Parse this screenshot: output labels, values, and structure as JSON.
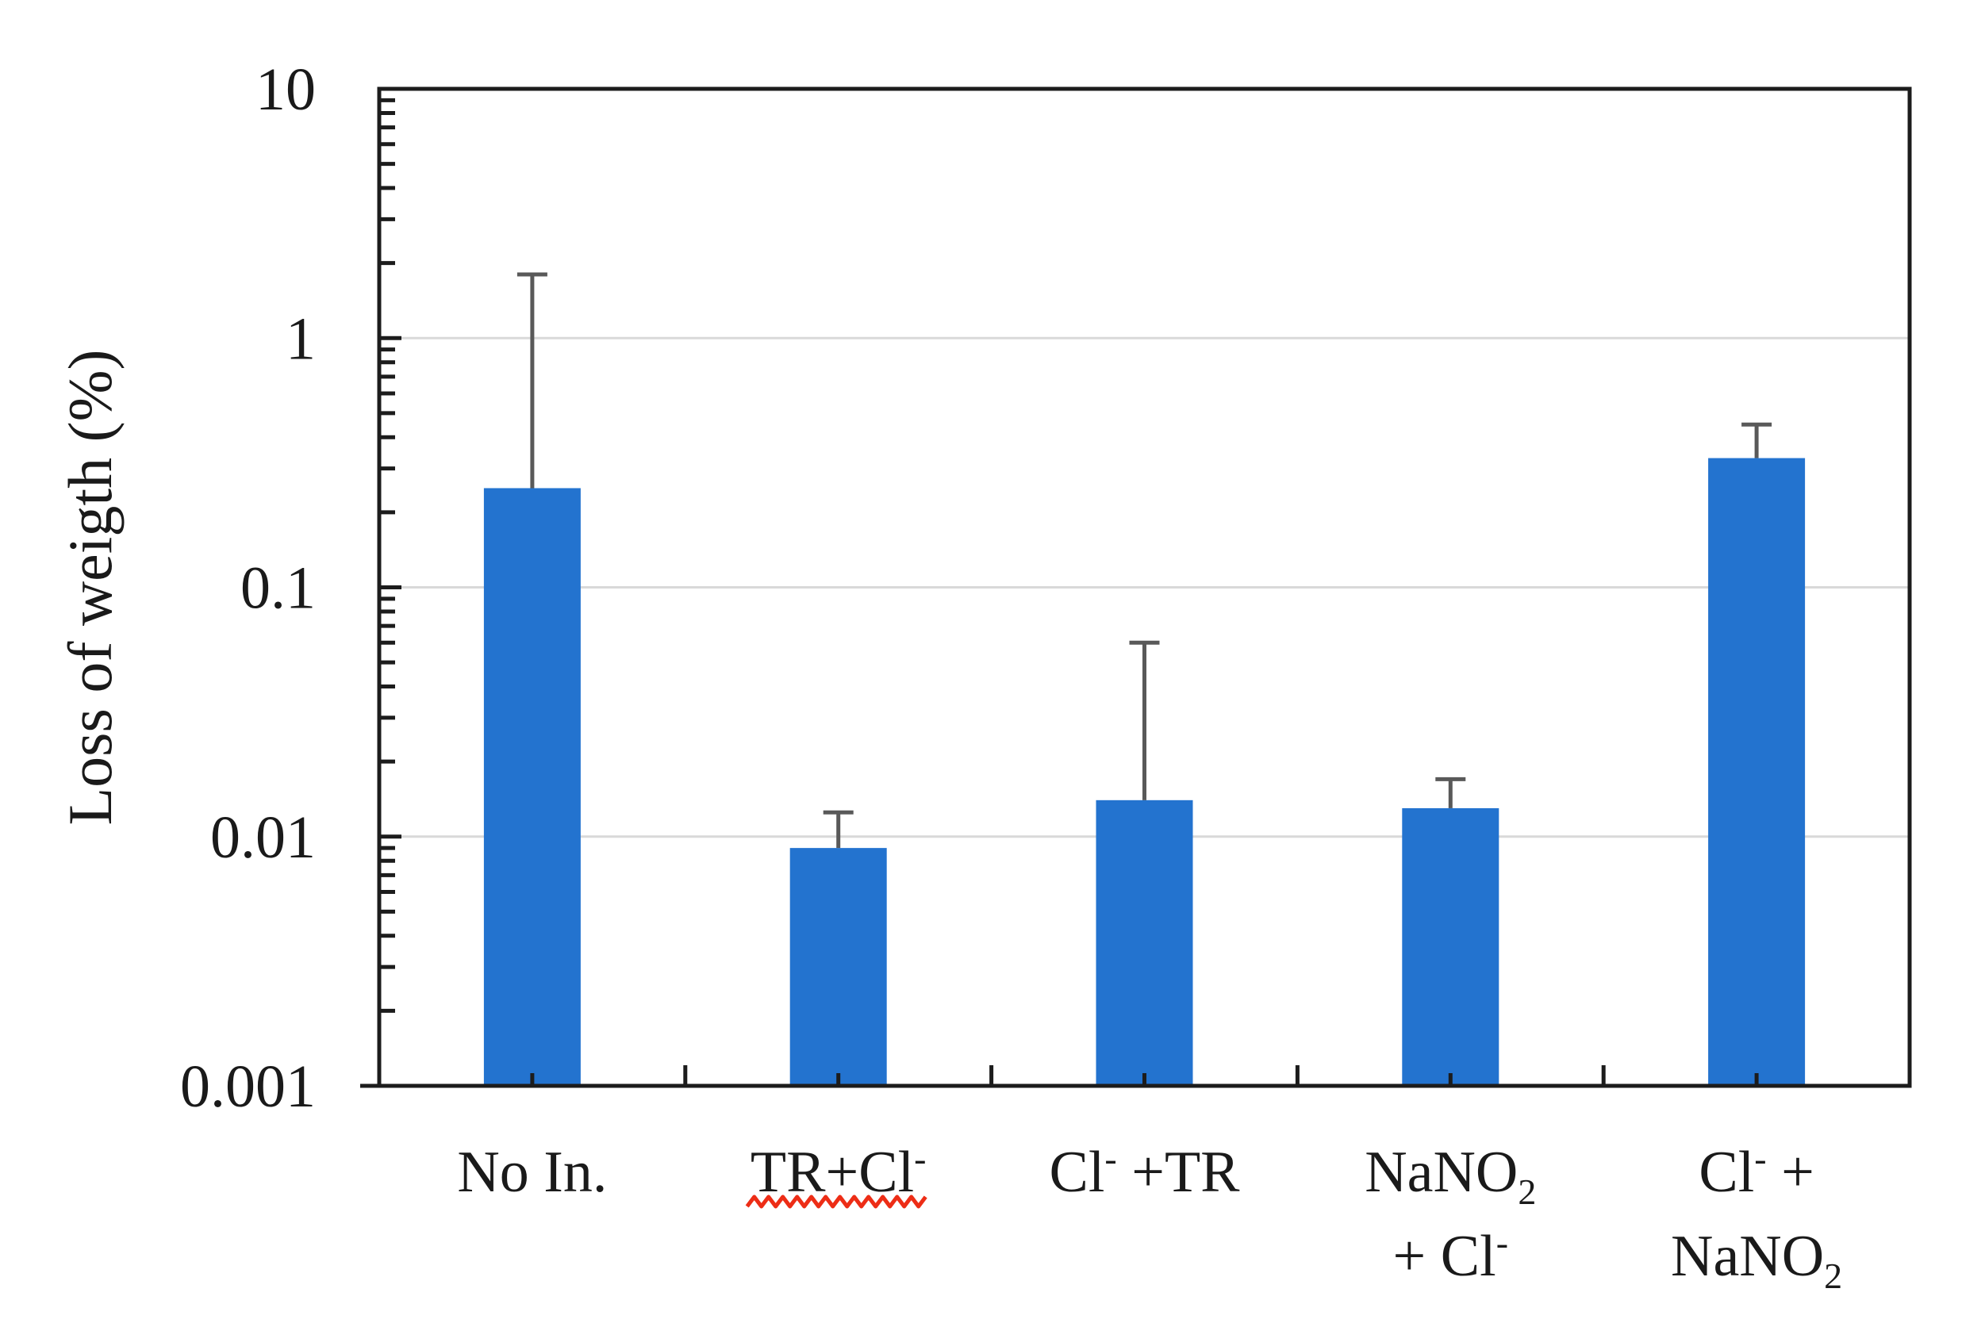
{
  "figure": {
    "background": "#ffffff",
    "description": "Bar chart with logarithmic y-axis showing weight loss percentage for five inhibitor conditions, each bar with an upper error bar"
  },
  "chart_data": {
    "type": "bar",
    "title": "",
    "xlabel": "",
    "ylabel": "Loss of weigth (%)",
    "y_scale": "log",
    "ylim": [
      0.001,
      10
    ],
    "y_ticks": [
      "10",
      "1",
      "0.1",
      "0.01",
      "0.001"
    ],
    "y_tick_values": [
      10,
      1,
      0.1,
      0.01,
      0.001
    ],
    "grid": "horizontal gridlines at decade values",
    "legend": "none",
    "categories": [
      "No In.",
      "TR+Cl-",
      "Cl- +TR",
      "NaNO2 + Cl-",
      "Cl- + NaNO2"
    ],
    "values": [
      0.25,
      0.009,
      0.014,
      0.013,
      0.33
    ],
    "error_bar_top_values": [
      1.8,
      0.0125,
      0.06,
      0.017,
      0.45
    ],
    "category_labels": [
      [
        [
          {
            "t": "No In."
          }
        ]
      ],
      [
        [
          {
            "t": "TR+Cl"
          },
          {
            "t": "-",
            "s": "sup"
          }
        ]
      ],
      [
        [
          {
            "t": "Cl"
          },
          {
            "t": "-",
            "s": "sup"
          },
          {
            "t": " +TR"
          }
        ]
      ],
      [
        [
          {
            "t": "NaNO"
          },
          {
            "t": "2",
            "s": "sub"
          }
        ],
        [
          {
            "t": "+ Cl"
          },
          {
            "t": "-",
            "s": "sup"
          }
        ]
      ],
      [
        [
          {
            "t": "Cl"
          },
          {
            "t": "-",
            "s": "sup"
          },
          {
            "t": " +"
          }
        ],
        [
          {
            "t": "NaNO"
          },
          {
            "t": "2",
            "s": "sub"
          }
        ]
      ]
    ],
    "spellcheck_underline": {
      "category": "TR+Cl-",
      "category_index": 1,
      "style": "red wavy underline",
      "color": "#ED2D16"
    },
    "colors": {
      "bar": "#2373CF",
      "error": "#595959",
      "grid": "#D9D9D9",
      "axis": "#1C1C1C",
      "text": "#1A1A1A"
    }
  }
}
